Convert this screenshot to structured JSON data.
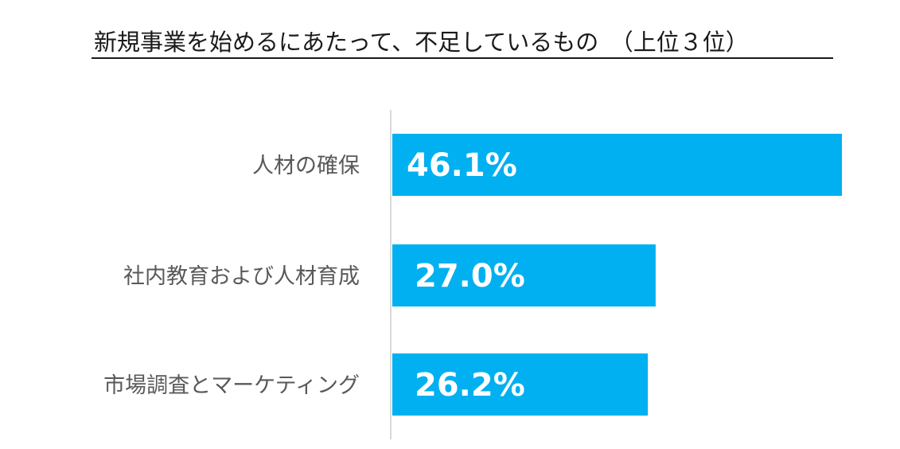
{
  "chart_data": {
    "type": "bar",
    "orientation": "horizontal",
    "title": "新規事業を始めるにあたって、不足しているもの　（上位３位）",
    "categories": [
      "人材の確保",
      "社内教育および人材育成",
      "市場調査とマーケティング"
    ],
    "values": [
      46.1,
      27.0,
      26.2
    ],
    "value_labels": [
      "46.1%",
      "27.0%",
      "26.2%"
    ],
    "xlim": [
      0,
      46.1
    ],
    "grid": false,
    "legend": "none",
    "bar_color": "#00B0F0",
    "axis_color": "#D9D9D9"
  }
}
